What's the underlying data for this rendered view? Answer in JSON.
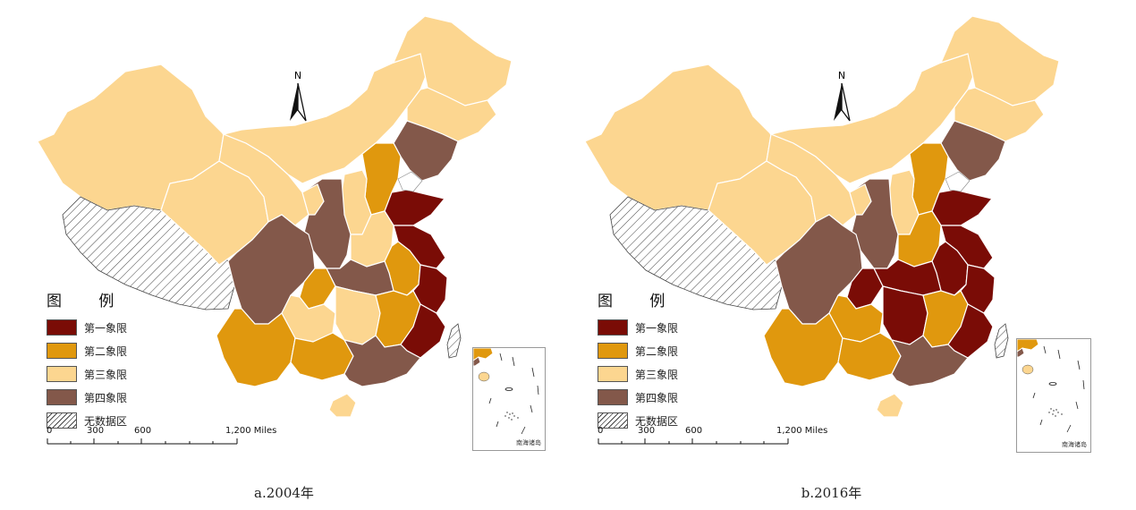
{
  "colors": {
    "q1": "#7a0c06",
    "q2": "#e0980e",
    "q3": "#fcd690",
    "q4": "#83584a",
    "border": "#ffffff"
  },
  "legend": {
    "title": "图  例",
    "items": [
      {
        "label": "第一象限",
        "key": "q1"
      },
      {
        "label": "第二象限",
        "key": "q2"
      },
      {
        "label": "第三象限",
        "key": "q3"
      },
      {
        "label": "第四象限",
        "key": "q4"
      },
      {
        "label": "无数据区",
        "key": "nodata"
      }
    ]
  },
  "north_label": "N",
  "scale": {
    "ticks": [
      "0",
      "300",
      "600",
      "1,200 Miles"
    ]
  },
  "inset_label": "南海诸岛",
  "panels": [
    {
      "caption": "a.2004年",
      "regions": {
        "xinjiang": "q3",
        "tibet": "nodata",
        "qinghai": "q3",
        "gansu": "q3",
        "innermongolia": "q3",
        "heilongjiang": "q3",
        "jilin": "q3",
        "liaoning": "q4",
        "beijing": "q1",
        "hebei": "q2",
        "shanxi": "q3",
        "shaanxi": "q4",
        "ningxia": "q3",
        "shandong": "q1",
        "henan": "q3",
        "jiangsu": "q1",
        "anhui": "q2",
        "zhejiang": "q1",
        "hubei": "q4",
        "sichuan": "q4",
        "chongqing": "q2",
        "guizhou": "q3",
        "hunan": "q3",
        "jiangxi": "q2",
        "fujian": "q1",
        "yunnan": "q2",
        "guangxi": "q2",
        "guangdong": "q4",
        "hainan": "q3",
        "taiwan": "nodata"
      }
    },
    {
      "caption": "b.2016年",
      "regions": {
        "xinjiang": "q3",
        "tibet": "nodata",
        "qinghai": "q3",
        "gansu": "q3",
        "innermongolia": "q3",
        "heilongjiang": "q3",
        "jilin": "q3",
        "liaoning": "q4",
        "beijing": "q1",
        "hebei": "q2",
        "shanxi": "q3",
        "shaanxi": "q4",
        "ningxia": "q3",
        "shandong": "q1",
        "henan": "q2",
        "jiangsu": "q1",
        "anhui": "q1",
        "zhejiang": "q1",
        "hubei": "q1",
        "sichuan": "q4",
        "chongqing": "q1",
        "guizhou": "q2",
        "hunan": "q1",
        "jiangxi": "q2",
        "fujian": "q1",
        "yunnan": "q2",
        "guangxi": "q2",
        "guangdong": "q4",
        "hainan": "q3",
        "taiwan": "nodata"
      }
    }
  ]
}
